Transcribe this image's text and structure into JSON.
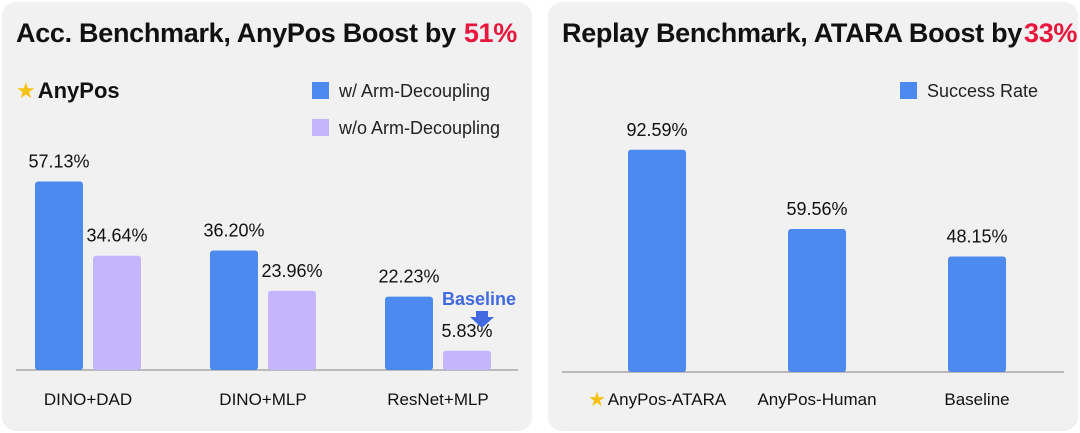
{
  "colors": {
    "primary": "#4d8af0",
    "secondary": "#c4b5fc",
    "accent": "#e8173d",
    "baseline_note": "#4169e1"
  },
  "left": {
    "title": "Acc. Benchmark, AnyPos Boost by",
    "boost": "51%",
    "brand": "AnyPos",
    "brand_icon": "star-icon",
    "legend": [
      "w/ Arm-Decoupling",
      "w/o Arm-Decoupling"
    ],
    "baseline_note": "Baseline"
  },
  "right": {
    "title": "Replay Benchmark, ATARA Boost by",
    "boost": "33%",
    "legend": [
      "Success Rate"
    ],
    "first_category_icon": "star-icon"
  },
  "chart_data": [
    {
      "type": "bar",
      "title": "Acc. Benchmark, AnyPos Boost by 51%",
      "categories": [
        "DINO+DAD",
        "DINO+MLP",
        "ResNet+MLP"
      ],
      "series": [
        {
          "name": "w/ Arm-Decoupling",
          "values": [
            57.13,
            36.2,
            22.23
          ],
          "labels": [
            "57.13%",
            "36.20%",
            "22.23%"
          ]
        },
        {
          "name": "w/o Arm-Decoupling",
          "values": [
            34.64,
            23.96,
            5.83
          ],
          "labels": [
            "34.64%",
            "23.96%",
            "5.83%"
          ]
        }
      ],
      "annotations": [
        "Baseline"
      ],
      "legend": "top-right",
      "grid": false
    },
    {
      "type": "bar",
      "title": "Replay Benchmark, ATARA Boost by 33%",
      "categories": [
        "AnyPos-ATARA",
        "AnyPos-Human",
        "Baseline"
      ],
      "series": [
        {
          "name": "Success Rate",
          "values": [
            92.59,
            59.56,
            48.15
          ],
          "labels": [
            "92.59%",
            "59.56%",
            "48.15%"
          ]
        }
      ],
      "legend": "top-right",
      "grid": false
    }
  ]
}
